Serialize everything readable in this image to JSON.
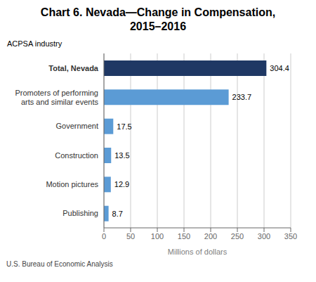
{
  "chart_data": {
    "type": "bar",
    "orientation": "horizontal",
    "title": "Chart 6. Nevada—Change in Compensation,\n2015–2016",
    "ylabel": "ACPSA industry",
    "xlabel": "Millions of dollars",
    "source": "U.S. Bureau of Economic Analysis",
    "categories": [
      "Publishing",
      "Motion pictures",
      "Construction",
      "Government",
      "Promoters of performing\narts and similar events",
      "Total, Nevada"
    ],
    "values": [
      8.7,
      12.9,
      13.5,
      17.5,
      233.7,
      304.4
    ],
    "colors": [
      "#5b9bd5",
      "#5b9bd5",
      "#5b9bd5",
      "#5b9bd5",
      "#5b9bd5",
      "#1f3864"
    ],
    "xlim": [
      0,
      350
    ],
    "xticks": [
      0,
      50,
      100,
      150,
      200,
      250,
      300,
      350
    ],
    "grid": true,
    "data_labels": true
  }
}
